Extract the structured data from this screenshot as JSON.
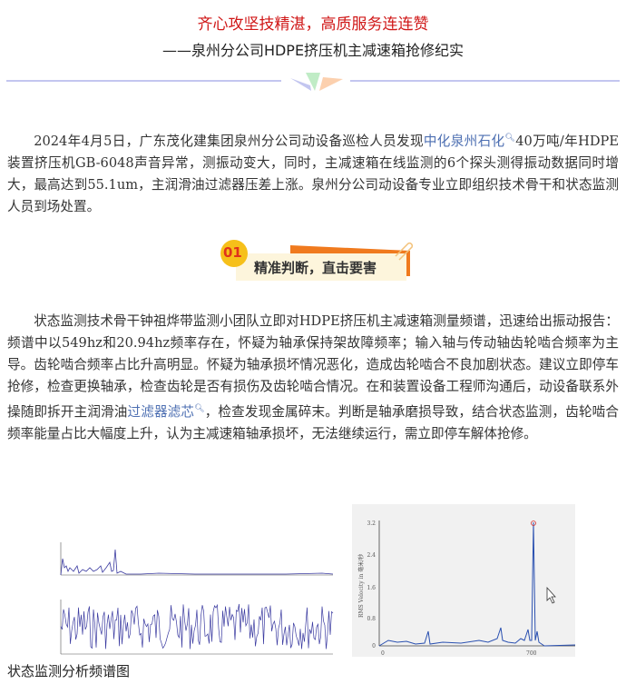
{
  "header": {
    "title": "齐心攻坚技精湛，高质服务连连赞",
    "subtitle": "——泉州分公司HDPE挤压机主减速箱抢修纪实"
  },
  "colors": {
    "title": "#d01818",
    "link": "#4d6fb2",
    "badge_circle": "#f6c01a",
    "badge_bg": "#fdf5dc",
    "badge_flag": "#f07a1e",
    "divider": "#c3c6f0"
  },
  "paragraph1": {
    "before": "2024年4月5日，广东茂化建集团泉州分公司动设备巡检人员发现",
    "link": "中化泉州石化",
    "after": "40万吨/年HDPE装置挤压机GB-6048声音异常，测振动变大，同时，主减速箱在线监测的6个探头测得振动数据同时增大，最高达到55.1um，主润滑油过滤器压差上涨。泉州分公司动设备专业立即组织技术骨干和状态监测人员到场处置。"
  },
  "section": {
    "number": "01",
    "heading": "精准判断，直击要害"
  },
  "paragraph2": {
    "before": "状态监测技术骨干钟祖烨带监测小团队立即对HDPE挤压机主减速箱测量频谱，迅速给出振动报告：频谱中以549hz和20.94hz频率存在，怀疑为轴承保持架故障频率；输入轴与传动轴齿轮啮合频率为主导。齿轮啮合频率占比升高明显。怀疑为轴承损坏情况恶化，造成齿轮啮合不良加剧状态。建议立即停车抢修，检查更换轴承，检查齿轮是否有损伤及齿轮啮合情况。在和装置设备工程师沟通后，动设备联系外操随即拆开主润滑油",
    "link": "过滤器滤芯",
    "after": "，检查发现金属碎末。判断是轴承磨损导致，结合状态监测，齿轮啮合频率能量占比大幅度上升，认为主减速箱轴承损坏，无法继续运行，需立即停车解体抢修。"
  },
  "figure": {
    "right_axis": {
      "y_ticks": [
        "3.2",
        "2.4",
        "1.6",
        "0.8",
        "0"
      ],
      "x_ticks": [
        "0",
        "700"
      ],
      "ylabel": "RMS Velocity in 毫米/秒"
    },
    "caption": "状态监测分析频谱图"
  }
}
